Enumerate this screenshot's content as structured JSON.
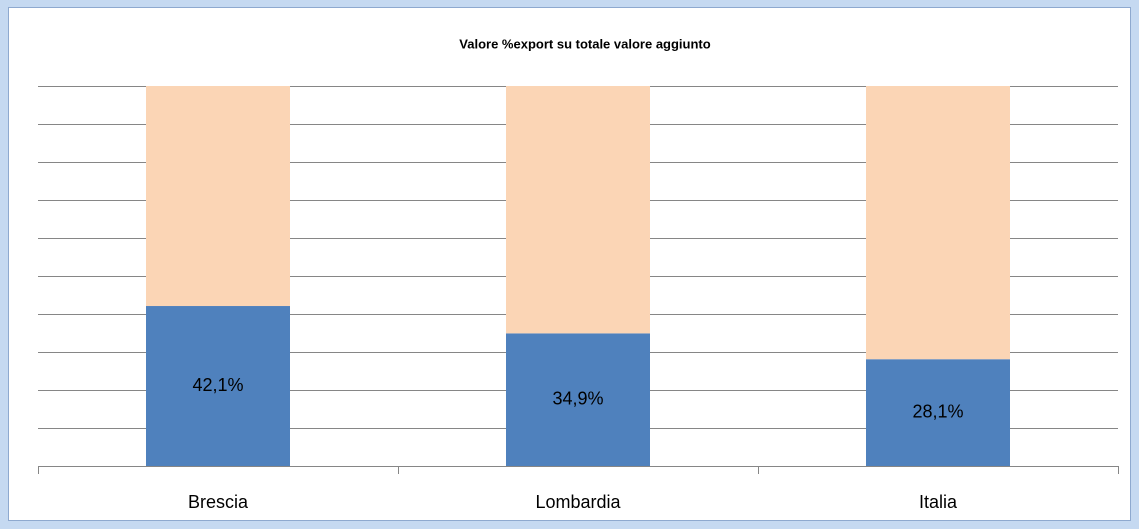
{
  "chart_data": {
    "type": "stacked_bar",
    "title": "Valore %export su totale valore aggiunto",
    "categories": [
      "Brescia",
      "Lombardia",
      "Italia"
    ],
    "series": [
      {
        "color": "#4f81bd",
        "values": [
          42.1,
          34.9,
          28.1
        ],
        "value_labels": [
          "42,1%",
          "34,9%",
          "28,1%"
        ]
      },
      {
        "color": "#fbd5b5",
        "values": [
          57.9,
          65.1,
          71.9
        ]
      }
    ],
    "ylim": [
      0,
      100
    ],
    "yticks": [
      0,
      10,
      20,
      30,
      40,
      50,
      60,
      70,
      80,
      90,
      100
    ],
    "grid": true
  }
}
